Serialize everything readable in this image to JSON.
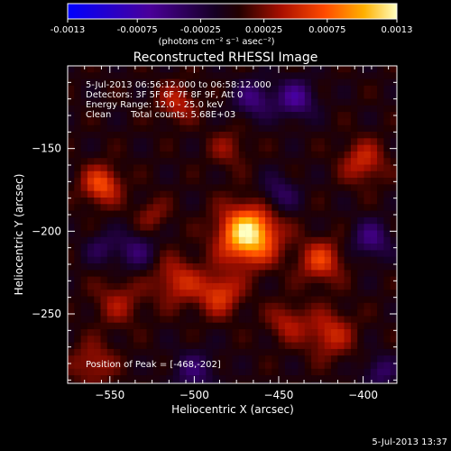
{
  "colorbar": {
    "tick_labels": [
      "-0.0013",
      "-0.00075",
      "-0.00025",
      "0.00025",
      "0.00075",
      "0.0013"
    ],
    "tick_values": [
      -0.0013,
      -0.00075,
      -0.00025,
      0.00025,
      0.00075,
      0.0013
    ],
    "range": [
      -0.0013,
      0.0013
    ],
    "units_label": "(photons cm⁻² s⁻¹ asec⁻²)",
    "colors": [
      "#0000ff",
      "#3a0099",
      "#1a0033",
      "#000000",
      "#8b1a00",
      "#ff3000",
      "#ffa000",
      "#ffffb0"
    ]
  },
  "chart_data": {
    "type": "heatmap",
    "title": "Reconstructed RHESSI Image",
    "xlabel": "Heliocentric X (arcsec)",
    "ylabel": "Heliocentric Y (arcsec)",
    "xlim": [
      -575,
      -380
    ],
    "ylim": [
      -292,
      -100
    ],
    "x_ticks": [
      -550,
      -500,
      -450,
      -400
    ],
    "y_ticks": [
      -150,
      -200,
      -250
    ],
    "x_tick_labels": [
      "−550",
      "−500",
      "−450",
      "−400"
    ],
    "y_tick_labels": [
      "−150",
      "−200",
      "−250"
    ],
    "peak": {
      "x": -468,
      "y": -202
    },
    "blobs": [
      {
        "x": -468,
        "y": -202,
        "amp": 0.0013,
        "sigma": 12
      },
      {
        "x": -555,
        "y": -172,
        "amp": 0.0007,
        "sigma": 8
      },
      {
        "x": -510,
        "y": -230,
        "amp": 0.0005,
        "sigma": 10
      },
      {
        "x": -485,
        "y": -238,
        "amp": 0.0006,
        "sigma": 9
      },
      {
        "x": -425,
        "y": -218,
        "amp": 0.0006,
        "sigma": 9
      },
      {
        "x": -400,
        "y": -158,
        "amp": 0.0005,
        "sigma": 9
      },
      {
        "x": -510,
        "y": -122,
        "amp": 0.00045,
        "sigma": 8
      },
      {
        "x": -545,
        "y": -243,
        "amp": 0.00035,
        "sigma": 10
      },
      {
        "x": -420,
        "y": -262,
        "amp": 0.0005,
        "sigma": 10
      },
      {
        "x": -445,
        "y": -255,
        "amp": 0.0004,
        "sigma": 8
      },
      {
        "x": -560,
        "y": -280,
        "amp": 0.0004,
        "sigma": 9
      },
      {
        "x": -480,
        "y": -150,
        "amp": 0.0003,
        "sigma": 8
      },
      {
        "x": -525,
        "y": -190,
        "amp": 0.0003,
        "sigma": 7
      },
      {
        "x": -440,
        "y": -120,
        "amp": -0.0006,
        "sigma": 8
      },
      {
        "x": -465,
        "y": -120,
        "amp": -0.0005,
        "sigma": 8
      },
      {
        "x": -450,
        "y": -178,
        "amp": -0.0004,
        "sigma": 8
      },
      {
        "x": -395,
        "y": -205,
        "amp": -0.0005,
        "sigma": 8
      },
      {
        "x": -535,
        "y": -212,
        "amp": -0.0004,
        "sigma": 8
      },
      {
        "x": -500,
        "y": -285,
        "amp": -0.0004,
        "sigma": 9
      },
      {
        "x": -555,
        "y": -210,
        "amp": -0.0003,
        "sigma": 7
      },
      {
        "x": -390,
        "y": -285,
        "amp": -0.0004,
        "sigma": 7
      }
    ]
  },
  "annotations": {
    "time_range": "5-Jul-2013 06:56:12.000 to 06:58:12.000",
    "detectors": "Detectors: 3F 5F 6F 7F 8F 9F, Att 0",
    "energy_range": "Energy Range: 12.0 - 25.0 keV",
    "method": "Clean",
    "total_counts": "Total counts: 5.68E+03",
    "peak_position": "Position of Peak = [-468,-202]"
  },
  "footer": {
    "timestamp": "5-Jul-2013 13:37"
  }
}
